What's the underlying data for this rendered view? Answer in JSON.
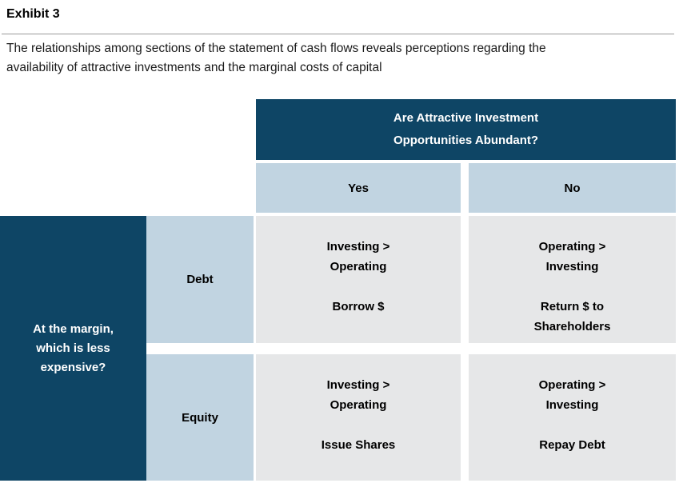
{
  "exhibit": {
    "title": "Exhibit 3",
    "caption": "The relationships among sections of the statement of cash flows reveals perceptions regarding the\navailability of attractive investments and the marginal costs of capital"
  },
  "matrix": {
    "column_question": "Are Attractive Investment\nOpportunities Abundant?",
    "column_headers": {
      "yes": "Yes",
      "no": "No"
    },
    "row_question": "At the margin,\nwhich is less\nexpensive?",
    "row_headers": {
      "debt": "Debt",
      "equity": "Equity"
    },
    "cells": {
      "debt_yes": {
        "comparison": "Investing >\nOperating",
        "action": "Borrow $"
      },
      "debt_no": {
        "comparison": "Operating >\nInvesting",
        "action": "Return $ to\nShareholders"
      },
      "equity_yes": {
        "comparison": "Investing >\nOperating",
        "action": "Issue Shares"
      },
      "equity_no": {
        "comparison": "Operating >\nInvesting",
        "action": "Repay Debt"
      }
    }
  },
  "colors": {
    "navy": "#0e4565",
    "light_blue": "#c1d4e1",
    "light_gray": "#e6e7e8",
    "rule_gray": "#999999",
    "header_text": "#ffffff",
    "body_text": "#000000"
  }
}
